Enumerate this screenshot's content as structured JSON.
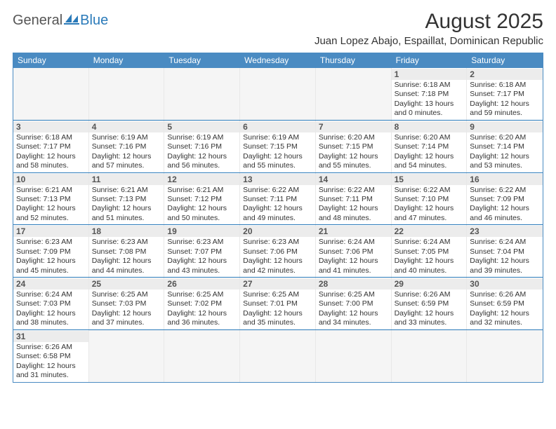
{
  "logo": {
    "text1": "General",
    "text2": "Blue"
  },
  "title": "August 2025",
  "subtitle": "Juan Lopez Abajo, Espaillat, Dominican Republic",
  "colors": {
    "header_bg": "#4a8bc2",
    "header_text": "#ffffff",
    "border": "#2a7ab9",
    "daynum_bg": "#ececec",
    "empty_bg": "#f5f5f5",
    "text": "#333333"
  },
  "day_names": [
    "Sunday",
    "Monday",
    "Tuesday",
    "Wednesday",
    "Thursday",
    "Friday",
    "Saturday"
  ],
  "weeks": [
    [
      null,
      null,
      null,
      null,
      null,
      {
        "n": "1",
        "sunrise": "Sunrise: 6:18 AM",
        "sunset": "Sunset: 7:18 PM",
        "d1": "Daylight: 13 hours",
        "d2": "and 0 minutes."
      },
      {
        "n": "2",
        "sunrise": "Sunrise: 6:18 AM",
        "sunset": "Sunset: 7:17 PM",
        "d1": "Daylight: 12 hours",
        "d2": "and 59 minutes."
      }
    ],
    [
      {
        "n": "3",
        "sunrise": "Sunrise: 6:18 AM",
        "sunset": "Sunset: 7:17 PM",
        "d1": "Daylight: 12 hours",
        "d2": "and 58 minutes."
      },
      {
        "n": "4",
        "sunrise": "Sunrise: 6:19 AM",
        "sunset": "Sunset: 7:16 PM",
        "d1": "Daylight: 12 hours",
        "d2": "and 57 minutes."
      },
      {
        "n": "5",
        "sunrise": "Sunrise: 6:19 AM",
        "sunset": "Sunset: 7:16 PM",
        "d1": "Daylight: 12 hours",
        "d2": "and 56 minutes."
      },
      {
        "n": "6",
        "sunrise": "Sunrise: 6:19 AM",
        "sunset": "Sunset: 7:15 PM",
        "d1": "Daylight: 12 hours",
        "d2": "and 55 minutes."
      },
      {
        "n": "7",
        "sunrise": "Sunrise: 6:20 AM",
        "sunset": "Sunset: 7:15 PM",
        "d1": "Daylight: 12 hours",
        "d2": "and 55 minutes."
      },
      {
        "n": "8",
        "sunrise": "Sunrise: 6:20 AM",
        "sunset": "Sunset: 7:14 PM",
        "d1": "Daylight: 12 hours",
        "d2": "and 54 minutes."
      },
      {
        "n": "9",
        "sunrise": "Sunrise: 6:20 AM",
        "sunset": "Sunset: 7:14 PM",
        "d1": "Daylight: 12 hours",
        "d2": "and 53 minutes."
      }
    ],
    [
      {
        "n": "10",
        "sunrise": "Sunrise: 6:21 AM",
        "sunset": "Sunset: 7:13 PM",
        "d1": "Daylight: 12 hours",
        "d2": "and 52 minutes."
      },
      {
        "n": "11",
        "sunrise": "Sunrise: 6:21 AM",
        "sunset": "Sunset: 7:13 PM",
        "d1": "Daylight: 12 hours",
        "d2": "and 51 minutes."
      },
      {
        "n": "12",
        "sunrise": "Sunrise: 6:21 AM",
        "sunset": "Sunset: 7:12 PM",
        "d1": "Daylight: 12 hours",
        "d2": "and 50 minutes."
      },
      {
        "n": "13",
        "sunrise": "Sunrise: 6:22 AM",
        "sunset": "Sunset: 7:11 PM",
        "d1": "Daylight: 12 hours",
        "d2": "and 49 minutes."
      },
      {
        "n": "14",
        "sunrise": "Sunrise: 6:22 AM",
        "sunset": "Sunset: 7:11 PM",
        "d1": "Daylight: 12 hours",
        "d2": "and 48 minutes."
      },
      {
        "n": "15",
        "sunrise": "Sunrise: 6:22 AM",
        "sunset": "Sunset: 7:10 PM",
        "d1": "Daylight: 12 hours",
        "d2": "and 47 minutes."
      },
      {
        "n": "16",
        "sunrise": "Sunrise: 6:22 AM",
        "sunset": "Sunset: 7:09 PM",
        "d1": "Daylight: 12 hours",
        "d2": "and 46 minutes."
      }
    ],
    [
      {
        "n": "17",
        "sunrise": "Sunrise: 6:23 AM",
        "sunset": "Sunset: 7:09 PM",
        "d1": "Daylight: 12 hours",
        "d2": "and 45 minutes."
      },
      {
        "n": "18",
        "sunrise": "Sunrise: 6:23 AM",
        "sunset": "Sunset: 7:08 PM",
        "d1": "Daylight: 12 hours",
        "d2": "and 44 minutes."
      },
      {
        "n": "19",
        "sunrise": "Sunrise: 6:23 AM",
        "sunset": "Sunset: 7:07 PM",
        "d1": "Daylight: 12 hours",
        "d2": "and 43 minutes."
      },
      {
        "n": "20",
        "sunrise": "Sunrise: 6:23 AM",
        "sunset": "Sunset: 7:06 PM",
        "d1": "Daylight: 12 hours",
        "d2": "and 42 minutes."
      },
      {
        "n": "21",
        "sunrise": "Sunrise: 6:24 AM",
        "sunset": "Sunset: 7:06 PM",
        "d1": "Daylight: 12 hours",
        "d2": "and 41 minutes."
      },
      {
        "n": "22",
        "sunrise": "Sunrise: 6:24 AM",
        "sunset": "Sunset: 7:05 PM",
        "d1": "Daylight: 12 hours",
        "d2": "and 40 minutes."
      },
      {
        "n": "23",
        "sunrise": "Sunrise: 6:24 AM",
        "sunset": "Sunset: 7:04 PM",
        "d1": "Daylight: 12 hours",
        "d2": "and 39 minutes."
      }
    ],
    [
      {
        "n": "24",
        "sunrise": "Sunrise: 6:24 AM",
        "sunset": "Sunset: 7:03 PM",
        "d1": "Daylight: 12 hours",
        "d2": "and 38 minutes."
      },
      {
        "n": "25",
        "sunrise": "Sunrise: 6:25 AM",
        "sunset": "Sunset: 7:03 PM",
        "d1": "Daylight: 12 hours",
        "d2": "and 37 minutes."
      },
      {
        "n": "26",
        "sunrise": "Sunrise: 6:25 AM",
        "sunset": "Sunset: 7:02 PM",
        "d1": "Daylight: 12 hours",
        "d2": "and 36 minutes."
      },
      {
        "n": "27",
        "sunrise": "Sunrise: 6:25 AM",
        "sunset": "Sunset: 7:01 PM",
        "d1": "Daylight: 12 hours",
        "d2": "and 35 minutes."
      },
      {
        "n": "28",
        "sunrise": "Sunrise: 6:25 AM",
        "sunset": "Sunset: 7:00 PM",
        "d1": "Daylight: 12 hours",
        "d2": "and 34 minutes."
      },
      {
        "n": "29",
        "sunrise": "Sunrise: 6:26 AM",
        "sunset": "Sunset: 6:59 PM",
        "d1": "Daylight: 12 hours",
        "d2": "and 33 minutes."
      },
      {
        "n": "30",
        "sunrise": "Sunrise: 6:26 AM",
        "sunset": "Sunset: 6:59 PM",
        "d1": "Daylight: 12 hours",
        "d2": "and 32 minutes."
      }
    ],
    [
      {
        "n": "31",
        "sunrise": "Sunrise: 6:26 AM",
        "sunset": "Sunset: 6:58 PM",
        "d1": "Daylight: 12 hours",
        "d2": "and 31 minutes."
      },
      null,
      null,
      null,
      null,
      null,
      null
    ]
  ]
}
